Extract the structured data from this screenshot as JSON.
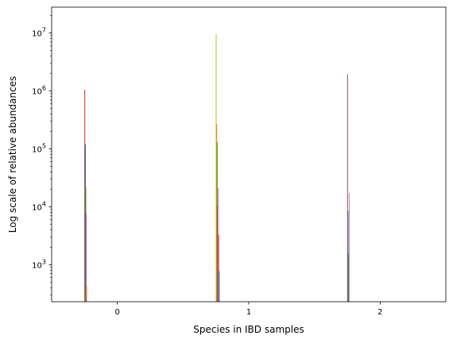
{
  "chart_data": {
    "type": "bar",
    "title": "",
    "xlabel": "Species in IBD samples",
    "ylabel": "Log scale of relative abundances",
    "y_scale": "log",
    "ylim": [
      230,
      28000000
    ],
    "xlim": [
      -0.5,
      2.5
    ],
    "grid": false,
    "x_ticks": [
      {
        "value": 0,
        "label": "0"
      },
      {
        "value": 1,
        "label": "1"
      },
      {
        "value": 2,
        "label": "2"
      }
    ],
    "y_ticks": [
      {
        "value": 1000,
        "base": "10",
        "exp": "3"
      },
      {
        "value": 10000,
        "base": "10",
        "exp": "4"
      },
      {
        "value": 100000,
        "base": "10",
        "exp": "5"
      },
      {
        "value": 1000000,
        "base": "10",
        "exp": "6"
      },
      {
        "value": 10000000,
        "base": "10",
        "exp": "7"
      }
    ],
    "bar_width": 0.006,
    "bars": [
      {
        "x": -0.248,
        "value": 1050000,
        "color": "#d62728"
      },
      {
        "x": -0.243,
        "value": 120000,
        "color": "#1f77b4"
      },
      {
        "x": -0.24,
        "value": 22000,
        "color": "#2ca02c"
      },
      {
        "x": -0.237,
        "value": 7500,
        "color": "#9467bd"
      },
      {
        "x": -0.234,
        "value": 430,
        "color": "#ff7f0e"
      },
      {
        "x": 0.752,
        "value": 9500000,
        "color": "#bcbd22"
      },
      {
        "x": 0.756,
        "value": 270000,
        "color": "#ff7f0e"
      },
      {
        "x": 0.76,
        "value": 130000,
        "color": "#2ca02c"
      },
      {
        "x": 0.763,
        "value": 10500,
        "color": "#8c564b"
      },
      {
        "x": 0.767,
        "value": 21000,
        "color": "#e377c2"
      },
      {
        "x": 0.771,
        "value": 3300,
        "color": "#d62728"
      },
      {
        "x": 0.775,
        "value": 780,
        "color": "#1f77b4"
      },
      {
        "x": 1.752,
        "value": 1950000,
        "color": "#8c564b"
      },
      {
        "x": 1.756,
        "value": 8500,
        "color": "#1f77b4"
      },
      {
        "x": 1.76,
        "value": 1550,
        "color": "#2ca02c"
      },
      {
        "x": 1.765,
        "value": 17500,
        "color": "#e377c2"
      }
    ]
  }
}
